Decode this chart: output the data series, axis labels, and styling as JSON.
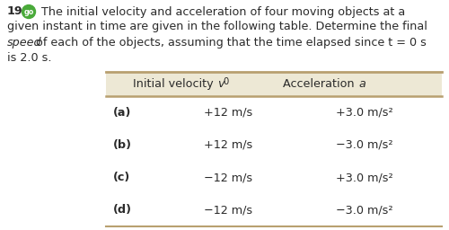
{
  "problem_number": "19.",
  "go_circle_color": "#4aaa3a",
  "go_text": "go",
  "line1_pre": "The initial velocity and acceleration of four moving objects at a",
  "line2": "given instant in time are given in the following table. Determine the final",
  "line3_italic": "speed",
  "line3_rest": " of each of the objects, assuming that the time elapsed since t = 0 s",
  "line4": "is 2.0 s.",
  "col_header1": "Initial velocity ",
  "col_header1_italic": "v",
  "col_header1_sub": "0",
  "col_header2": "Acceleration ",
  "col_header2_italic": "a",
  "rows": [
    {
      "label": "(a)",
      "v0": "+12 m/s",
      "acc": "+3.0 m/s²"
    },
    {
      "label": "(b)",
      "v0": "+12 m/s",
      "acc": "−3.0 m/s²"
    },
    {
      "label": "(c)",
      "v0": "−12 m/s",
      "acc": "+3.0 m/s²"
    },
    {
      "label": "(d)",
      "v0": "−12 m/s",
      "acc": "−3.0 m/s²"
    }
  ],
  "table_header_bg": "#ede8d5",
  "text_color": "#2a2a2a",
  "font_size_body": 9.2,
  "font_size_table": 9.2,
  "background_color": "#ffffff",
  "border_color": "#b8a070",
  "fig_width": 5.0,
  "fig_height": 2.56,
  "dpi": 100
}
